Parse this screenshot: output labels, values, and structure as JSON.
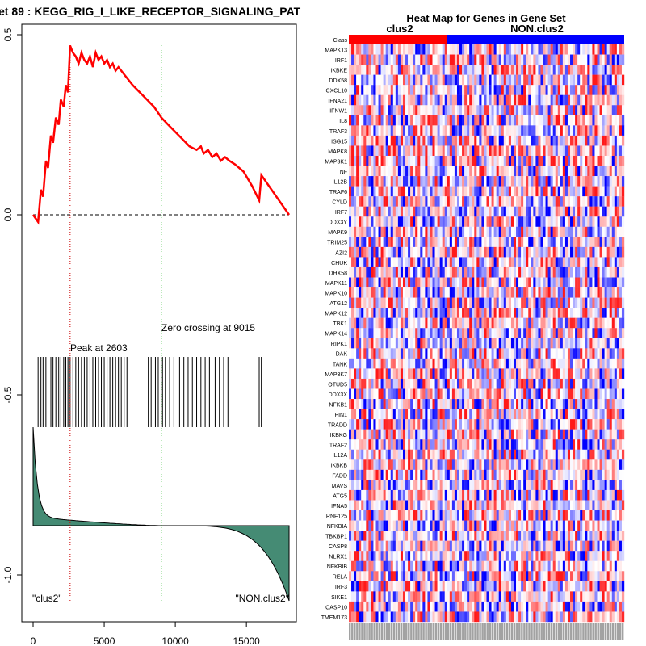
{
  "left_plot": {
    "title": "et  89 : KEGG_RIG_I_LIKE_RECEPTOR_SIGNALING_PAT",
    "peak_label": "Peak at 2603",
    "zero_label": "Zero crossing at 9015",
    "left_class": "\"clus2\"",
    "right_class": "\"NON.clus2\"",
    "colors": {
      "es_line": "#ff0000",
      "peak_line": "#cc0000",
      "zero_line": "#00aa00",
      "ranked_fill": "#458b74"
    }
  },
  "heatmap": {
    "title": "Heat Map for Genes in Gene Set",
    "class_row_label": "Class",
    "group1_label": "clus2",
    "group2_label": "NON.clus2",
    "colors": {
      "group1": "#ff0000",
      "group2": "#0000ff"
    },
    "genes": [
      "MAPK13",
      "IRF1",
      "IKBKE",
      "DDX58",
      "CXCL10",
      "IFNA21",
      "IFNW1",
      "IL8",
      "TRAF3",
      "ISG15",
      "MAPK8",
      "MAP3K1",
      "TNF",
      "IL12B",
      "TRAF6",
      "CYLD",
      "IRF7",
      "DDX3Y",
      "MAPK9",
      "TRIM25",
      "AZI2",
      "CHUK",
      "DHX58",
      "MAPK11",
      "MAPK10",
      "ATG12",
      "MAPK12",
      "TBK1",
      "MAPK14",
      "RIPK1",
      "DAK",
      "TANK",
      "MAP3K7",
      "OTUD5",
      "DDX3X",
      "NFKB1",
      "PIN1",
      "TRADD",
      "IKBKG",
      "TRAF2",
      "IL12A",
      "IKBKB",
      "FADD",
      "MAVS",
      "ATG5",
      "IFNA5",
      "RNF125",
      "NFKBIA",
      "TBKBP1",
      "CASP8",
      "NLRX1",
      "NFKBIB",
      "RELA",
      "IRF3",
      "SIKE1",
      "CASP10",
      "TMEM173"
    ]
  },
  "chart_data": [
    {
      "type": "line",
      "title": "et  89 : KEGG_RIG_I_LIKE_RECEPTOR_SIGNALING_PAT",
      "xlim": [
        0,
        18000
      ],
      "ylim": [
        -1.05,
        0.52
      ],
      "x_ticks": [
        0,
        5000,
        10000,
        15000
      ],
      "y_ticks": [
        0.5,
        0.0,
        -0.5,
        -1.0
      ],
      "y_tick_labels": [
        "0.5",
        "0.0",
        "-0.5",
        "-1.0"
      ],
      "peak": 2603,
      "zero_crossing": 9015,
      "series": [
        {
          "x": [
            0,
            350,
            550,
            700,
            900,
            1050,
            1250,
            1400,
            1600,
            1800,
            1950,
            2150,
            2300,
            2450,
            2603,
            2800,
            3000,
            3200,
            3400,
            3600,
            3800,
            4000,
            4200,
            4400,
            4600,
            4800,
            5000,
            5200,
            5400,
            5600,
            5800,
            6000,
            6200,
            6400,
            6600,
            7000,
            7500,
            8000,
            8500,
            9015,
            9500,
            10000,
            10500,
            11000,
            11500,
            11800,
            12000,
            12300,
            12600,
            12900,
            13200,
            13500,
            13800,
            14200,
            14800,
            15400,
            15900,
            16050,
            18000
          ],
          "y": [
            0.0,
            -0.02,
            0.07,
            0.05,
            0.15,
            0.13,
            0.22,
            0.2,
            0.27,
            0.25,
            0.32,
            0.3,
            0.36,
            0.34,
            0.47,
            0.45,
            0.44,
            0.42,
            0.45,
            0.43,
            0.42,
            0.44,
            0.41,
            0.45,
            0.43,
            0.44,
            0.42,
            0.43,
            0.41,
            0.42,
            0.4,
            0.41,
            0.4,
            0.39,
            0.38,
            0.36,
            0.34,
            0.32,
            0.3,
            0.27,
            0.25,
            0.23,
            0.21,
            0.19,
            0.18,
            0.19,
            0.17,
            0.18,
            0.16,
            0.17,
            0.15,
            0.16,
            0.15,
            0.14,
            0.12,
            0.08,
            0.04,
            0.11,
            0.0
          ]
        }
      ],
      "hits": [
        350,
        550,
        700,
        900,
        1050,
        1250,
        1400,
        1600,
        1800,
        1950,
        2150,
        2300,
        2450,
        2603,
        2800,
        3000,
        3200,
        3400,
        3600,
        3800,
        4000,
        4200,
        4400,
        4600,
        4800,
        5000,
        5200,
        5400,
        5600,
        5800,
        6000,
        6200,
        6400,
        6600,
        8100,
        8300,
        8600,
        8800,
        9100,
        9300,
        9600,
        9900,
        10300,
        10600,
        10900,
        11200,
        11500,
        11800,
        12100,
        12400,
        12800,
        13100,
        13400,
        13700,
        15900,
        16050
      ]
    },
    {
      "type": "heatmap",
      "title": "Heat Map for Genes in Gene Set",
      "n_samples": 112,
      "n_group1": 40,
      "group_labels": [
        "clus2",
        "NON.clus2"
      ]
    }
  ]
}
